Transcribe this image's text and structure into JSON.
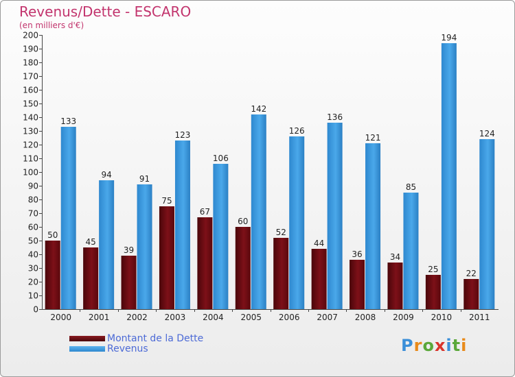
{
  "header": {
    "title": "Revenus/Dette - ESCARO",
    "subtitle": "(en milliers d'€)"
  },
  "colors": {
    "title": "#c2346d",
    "debt": "#6a0c12",
    "revenue": "#3a9be0",
    "legend_text": "#4c6ad6"
  },
  "legend": {
    "items": [
      {
        "label": "Montant de la Dette",
        "color": "#6a0c12"
      },
      {
        "label": "Revenus",
        "color": "#3a9be0"
      }
    ]
  },
  "logo": {
    "text": "Proxiti"
  },
  "chart_data": {
    "type": "bar",
    "categories": [
      "2000",
      "2001",
      "2002",
      "2003",
      "2004",
      "2005",
      "2006",
      "2007",
      "2008",
      "2009",
      "2010",
      "2011"
    ],
    "series": [
      {
        "name": "Montant de la Dette",
        "color": "#6a0c12",
        "values": [
          50,
          45,
          39,
          75,
          67,
          60,
          52,
          44,
          36,
          34,
          25,
          22
        ]
      },
      {
        "name": "Revenus",
        "color": "#3a9be0",
        "values": [
          133,
          94,
          91,
          123,
          106,
          142,
          126,
          136,
          121,
          85,
          194,
          124
        ]
      }
    ],
    "y_ticks": [
      "0",
      "10",
      "20",
      "30",
      "40",
      "50",
      "60",
      "70",
      "80",
      "90",
      "100",
      "110",
      "120",
      "130",
      "140",
      "150",
      "160",
      "170",
      "180",
      "190",
      "200"
    ],
    "ylim": [
      0,
      200
    ],
    "grid": false,
    "legend_position": "bottom-left",
    "data_labels": true
  }
}
